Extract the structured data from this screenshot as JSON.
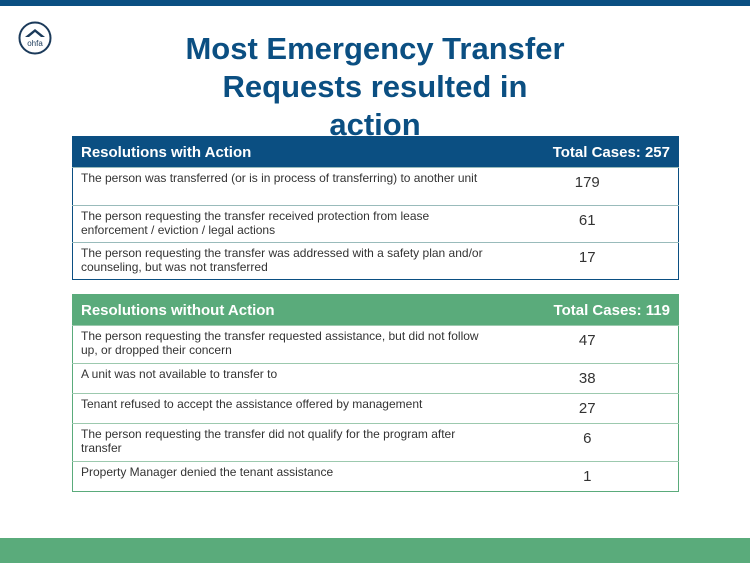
{
  "title": "Most Emergency Transfer Requests resulted in action",
  "logo_text": "ohfa",
  "colors": {
    "primary": "#0b4f82",
    "accent": "#5aab7b"
  },
  "with_action": {
    "header": "Resolutions with Action",
    "total": "Total Cases: 257",
    "rows": [
      {
        "label": "The person was transferred (or is in process of transferring) to another unit",
        "value": "179"
      },
      {
        "label": "The person requesting the transfer received protection from lease enforcement / eviction / legal actions",
        "value": "61"
      },
      {
        "label": "The person requesting the transfer was addressed with a safety plan and/or counseling, but was not transferred",
        "value": "17"
      }
    ]
  },
  "without_action": {
    "header": "Resolutions without Action",
    "total": "Total Cases: 119",
    "rows": [
      {
        "label": "The person requesting the transfer requested assistance, but did not follow up, or dropped their concern",
        "value": "47"
      },
      {
        "label": "A unit was not available to transfer to",
        "value": "38"
      },
      {
        "label": "Tenant refused to accept the assistance offered by management",
        "value": "27"
      },
      {
        "label": "The person requesting the transfer did not qualify for the program after transfer",
        "value": "6"
      },
      {
        "label": "Property Manager denied the tenant assistance",
        "value": "1"
      }
    ]
  }
}
